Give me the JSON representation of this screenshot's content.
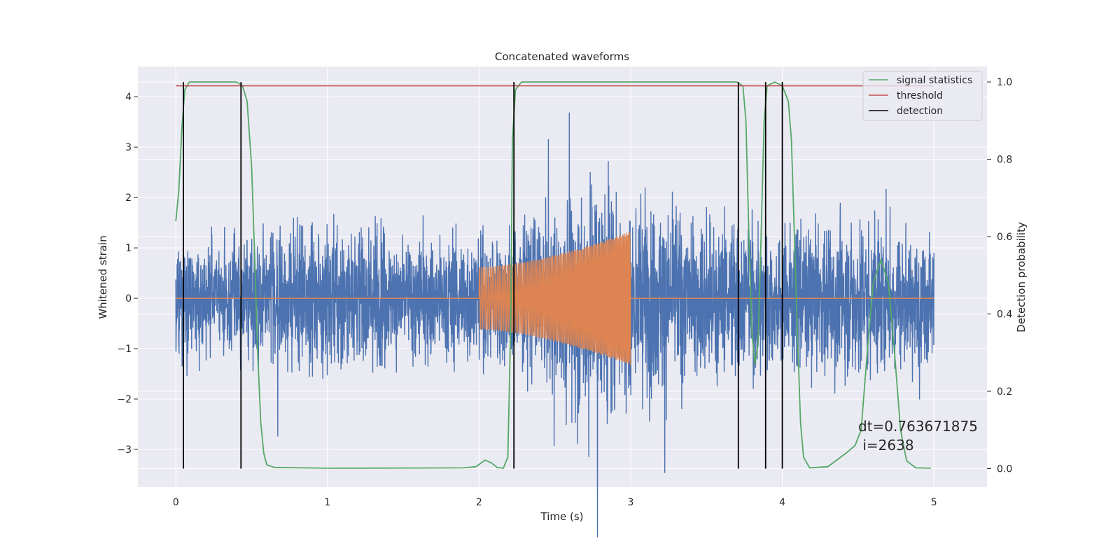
{
  "chart_data": {
    "type": "line",
    "title": "Concatenated waveforms",
    "xlabel": "Time (s)",
    "ylabel": "Whitened strain",
    "y2label": "Detection probability",
    "xlim": [
      -0.25,
      5.35
    ],
    "ylim": [
      -3.75,
      4.6
    ],
    "y2lim": [
      -0.048,
      1.04
    ],
    "xticks": [
      0,
      1,
      2,
      3,
      4,
      5
    ],
    "yticks": [
      -3,
      -2,
      -1,
      0,
      1,
      2,
      3,
      4
    ],
    "y2ticks": [
      0.0,
      0.2,
      0.4,
      0.6,
      0.8,
      1.0
    ],
    "grid": true,
    "legend_position": "top-right",
    "colors": {
      "noise": "#4c72b0",
      "injection": "#dd8452",
      "signal_statistics": "#55a868",
      "threshold": "#c44e52",
      "detection": "#000000",
      "background": "#eaeaf2",
      "grid": "#ffffff"
    },
    "series": [
      {
        "key": "noise",
        "axis": "left",
        "description_values": "whitened noise, approx. |y| <= 2 with peaks to ~4.4",
        "x_range": [
          0,
          5
        ],
        "envelope": [
          [
            0.0,
            1.6
          ],
          [
            0.5,
            2.0
          ],
          [
            1.0,
            2.2
          ],
          [
            1.5,
            2.1
          ],
          [
            2.0,
            1.9
          ],
          [
            2.5,
            2.6
          ],
          [
            2.75,
            4.4
          ],
          [
            3.0,
            3.2
          ],
          [
            3.5,
            2.5
          ],
          [
            4.0,
            2.2
          ],
          [
            4.5,
            2.6
          ],
          [
            5.0,
            2.0
          ]
        ]
      },
      {
        "key": "injection",
        "axis": "left",
        "x_range": [
          2.0,
          3.0
        ],
        "amplitude_start": 0.62,
        "amplitude_end": 1.33,
        "baseline": 0
      },
      {
        "key": "signal_statistics",
        "name": "signal statistics",
        "axis": "right",
        "points": [
          [
            0.0,
            0.64
          ],
          [
            0.02,
            0.72
          ],
          [
            0.04,
            0.88
          ],
          [
            0.06,
            0.98
          ],
          [
            0.09,
            1.0
          ],
          [
            0.4,
            1.0
          ],
          [
            0.44,
            0.99
          ],
          [
            0.47,
            0.95
          ],
          [
            0.5,
            0.78
          ],
          [
            0.52,
            0.55
          ],
          [
            0.54,
            0.3
          ],
          [
            0.56,
            0.12
          ],
          [
            0.58,
            0.04
          ],
          [
            0.6,
            0.01
          ],
          [
            0.65,
            0.003
          ],
          [
            1.0,
            0.001
          ],
          [
            1.9,
            0.002
          ],
          [
            1.98,
            0.005
          ],
          [
            2.04,
            0.022
          ],
          [
            2.08,
            0.015
          ],
          [
            2.12,
            0.003
          ],
          [
            2.16,
            0.001
          ],
          [
            2.19,
            0.03
          ],
          [
            2.21,
            0.4
          ],
          [
            2.22,
            0.85
          ],
          [
            2.24,
            0.98
          ],
          [
            2.28,
            1.0
          ],
          [
            3.7,
            1.0
          ],
          [
            3.74,
            0.99
          ],
          [
            3.76,
            0.9
          ],
          [
            3.78,
            0.6
          ],
          [
            3.8,
            0.35
          ],
          [
            3.82,
            0.27
          ],
          [
            3.84,
            0.32
          ],
          [
            3.86,
            0.6
          ],
          [
            3.88,
            0.9
          ],
          [
            3.9,
            0.99
          ],
          [
            3.95,
            1.0
          ],
          [
            4.0,
            0.99
          ],
          [
            4.04,
            0.95
          ],
          [
            4.06,
            0.85
          ],
          [
            4.08,
            0.6
          ],
          [
            4.1,
            0.35
          ],
          [
            4.12,
            0.12
          ],
          [
            4.14,
            0.03
          ],
          [
            4.18,
            0.002
          ],
          [
            4.3,
            0.005
          ],
          [
            4.42,
            0.04
          ],
          [
            4.48,
            0.06
          ],
          [
            4.52,
            0.1
          ],
          [
            4.56,
            0.3
          ],
          [
            4.6,
            0.48
          ],
          [
            4.65,
            0.54
          ],
          [
            4.7,
            0.48
          ],
          [
            4.74,
            0.3
          ],
          [
            4.78,
            0.1
          ],
          [
            4.82,
            0.02
          ],
          [
            4.88,
            0.002
          ],
          [
            4.98,
            0.001
          ]
        ]
      },
      {
        "key": "threshold",
        "name": "threshold",
        "axis": "right",
        "value": 0.99,
        "x_range": [
          0,
          5
        ]
      },
      {
        "key": "detection",
        "name": "detection",
        "axis": "right",
        "x": [
          0.05,
          0.43,
          2.23,
          3.71,
          3.89,
          4.0
        ],
        "y_range": [
          0.0,
          1.0
        ]
      }
    ],
    "annotation": {
      "line1": "dt=0.763671875",
      "line2": " i=2638"
    }
  }
}
